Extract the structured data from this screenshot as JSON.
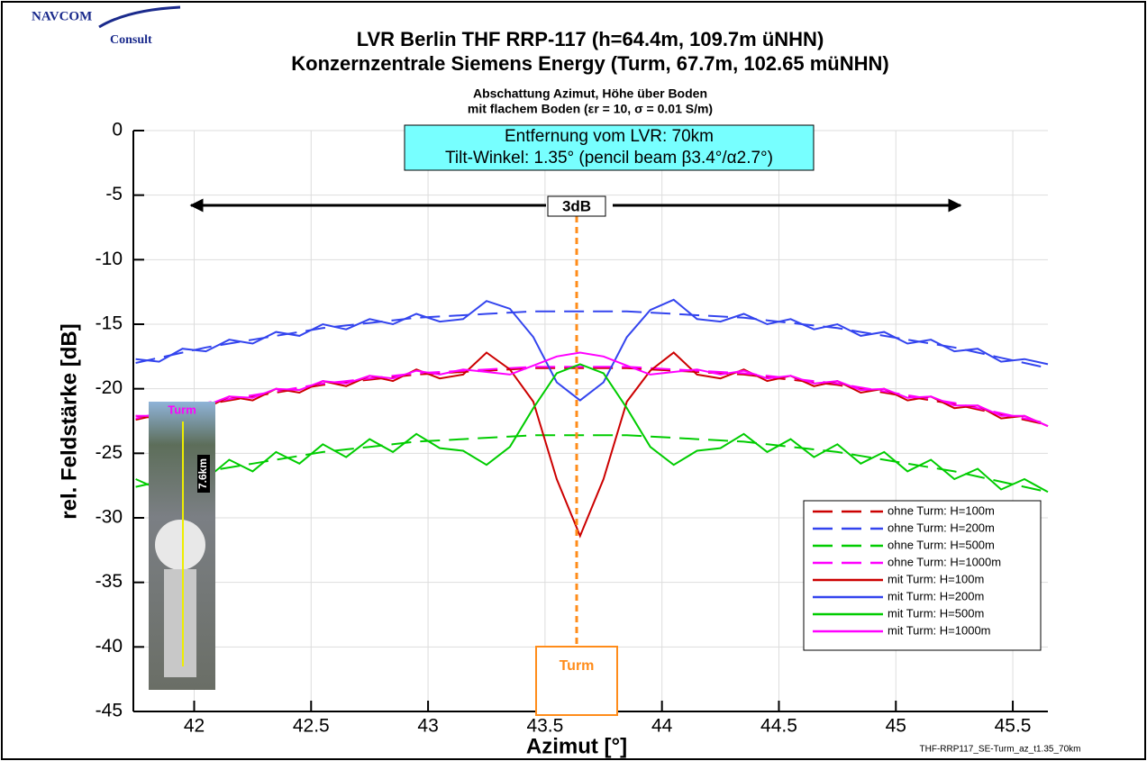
{
  "chart_data": {
    "type": "line",
    "title": [
      "LVR  Berlin THF RRP-117 (h=64.4m, 109.7m üNHN)",
      "Konzernzentrale Siemens Energy (Turm, 67.7m, 102.65 müNHN)"
    ],
    "subtitle": [
      "Abschattung Azimut, Höhe über Boden",
      "mit flachem Boden (εr = 10,  σ = 0.01 S/m)"
    ],
    "info_box": [
      "Entfernung vom LVR: 70km",
      "Tilt-Winkel: 1.35° (pencil beam β3.4°/α2.7°)"
    ],
    "annotations": {
      "beamwidth": "3dB",
      "tower": "Turm",
      "inset_tower": "Turm",
      "inset_distance": "7.6km"
    },
    "logo": [
      "NAVCOM",
      "Consult"
    ],
    "footer": "THF-RRP117_SE-Turm_az_t1.35_70km",
    "x_label": "Azimut [°]",
    "y_label": "rel. Feldstärke [dB]",
    "xlim": [
      41.74,
      45.65
    ],
    "ylim": [
      -45,
      0
    ],
    "xticks": [
      42,
      42.5,
      43,
      43.5,
      44,
      44.5,
      45,
      45.5
    ],
    "yticks": [
      0,
      -5,
      -10,
      -15,
      -20,
      -25,
      -30,
      -35,
      -40,
      -45
    ],
    "grid": true,
    "legend": "lower right",
    "x": [
      41.75,
      41.85,
      41.95,
      42.05,
      42.15,
      42.25,
      42.35,
      42.45,
      42.55,
      42.65,
      42.75,
      42.85,
      42.95,
      43.05,
      43.15,
      43.25,
      43.35,
      43.45,
      43.55,
      43.65,
      43.75,
      43.85,
      43.95,
      44.05,
      44.15,
      44.25,
      44.35,
      44.45,
      44.55,
      44.65,
      44.75,
      44.85,
      44.95,
      45.05,
      45.15,
      45.25,
      45.35,
      45.45,
      45.55,
      45.65
    ],
    "series": [
      {
        "name": "ohne Turm: H=100m",
        "color": "#cc0000",
        "dashed": true,
        "values": [
          -22.4,
          -22.0,
          -21.6,
          -21.2,
          -20.9,
          -20.6,
          -20.3,
          -20.0,
          -19.7,
          -19.5,
          -19.3,
          -19.1,
          -18.9,
          -18.8,
          -18.7,
          -18.6,
          -18.5,
          -18.4,
          -18.4,
          -18.4,
          -18.4,
          -18.4,
          -18.5,
          -18.6,
          -18.7,
          -18.8,
          -18.9,
          -19.1,
          -19.3,
          -19.5,
          -19.7,
          -20.0,
          -20.3,
          -20.6,
          -20.9,
          -21.2,
          -21.6,
          -22.0,
          -22.4,
          -22.8
        ]
      },
      {
        "name": "ohne Turm: H=200m",
        "color": "#3344ee",
        "dashed": true,
        "values": [
          -18.0,
          -17.6,
          -17.2,
          -16.8,
          -16.5,
          -16.2,
          -15.9,
          -15.6,
          -15.3,
          -15.1,
          -14.9,
          -14.7,
          -14.5,
          -14.4,
          -14.3,
          -14.2,
          -14.1,
          -14.0,
          -14.0,
          -14.0,
          -14.0,
          -14.0,
          -14.1,
          -14.2,
          -14.3,
          -14.4,
          -14.5,
          -14.7,
          -14.9,
          -15.1,
          -15.3,
          -15.6,
          -15.9,
          -16.2,
          -16.5,
          -16.8,
          -17.2,
          -17.6,
          -18.0,
          -18.4
        ]
      },
      {
        "name": "ohne Turm: H=500m",
        "color": "#00cc00",
        "dashed": true,
        "values": [
          -27.6,
          -27.2,
          -26.8,
          -26.4,
          -26.1,
          -25.8,
          -25.5,
          -25.2,
          -24.9,
          -24.7,
          -24.5,
          -24.3,
          -24.1,
          -24.0,
          -23.9,
          -23.8,
          -23.7,
          -23.6,
          -23.6,
          -23.6,
          -23.6,
          -23.6,
          -23.7,
          -23.8,
          -23.9,
          -24.0,
          -24.1,
          -24.3,
          -24.5,
          -24.7,
          -24.9,
          -25.2,
          -25.5,
          -25.8,
          -26.1,
          -26.4,
          -26.8,
          -27.2,
          -27.6,
          -28.0
        ]
      },
      {
        "name": "ohne Turm: H=1000m",
        "color": "#ff00ff",
        "dashed": true,
        "values": [
          -22.3,
          -21.9,
          -21.5,
          -21.1,
          -20.8,
          -20.5,
          -20.2,
          -19.9,
          -19.6,
          -19.4,
          -19.2,
          -19.0,
          -18.8,
          -18.7,
          -18.6,
          -18.5,
          -18.4,
          -18.3,
          -18.3,
          -18.3,
          -18.3,
          -18.3,
          -18.4,
          -18.5,
          -18.6,
          -18.7,
          -18.8,
          -19.0,
          -19.2,
          -19.4,
          -19.6,
          -19.9,
          -20.2,
          -20.5,
          -20.8,
          -21.1,
          -21.5,
          -21.9,
          -22.3,
          -22.7
        ]
      },
      {
        "name": "mit Turm: H=100m",
        "color": "#cc0000",
        "dashed": false,
        "values": [
          -22.1,
          -22.3,
          -21.3,
          -21.5,
          -20.6,
          -20.9,
          -20.0,
          -20.3,
          -19.4,
          -19.8,
          -19.0,
          -19.4,
          -18.5,
          -19.2,
          -18.9,
          -17.2,
          -18.5,
          -21.0,
          -27.0,
          -31.4,
          -27.0,
          -21.0,
          -18.6,
          -17.2,
          -18.9,
          -19.2,
          -18.5,
          -19.4,
          -19.0,
          -19.8,
          -19.4,
          -20.3,
          -20.0,
          -20.9,
          -20.6,
          -21.5,
          -21.3,
          -22.3,
          -22.1,
          -22.9
        ]
      },
      {
        "name": "mit Turm: H=200m",
        "color": "#3344ee",
        "dashed": false,
        "values": [
          -17.7,
          -17.9,
          -16.9,
          -17.1,
          -16.2,
          -16.5,
          -15.6,
          -15.9,
          -15.0,
          -15.4,
          -14.6,
          -15.0,
          -14.2,
          -14.8,
          -14.6,
          -13.2,
          -13.8,
          -16.0,
          -19.5,
          -20.9,
          -19.5,
          -16.0,
          -13.9,
          -13.1,
          -14.6,
          -14.8,
          -14.2,
          -15.0,
          -14.6,
          -15.4,
          -15.0,
          -15.9,
          -15.6,
          -16.5,
          -16.2,
          -17.1,
          -16.9,
          -17.9,
          -17.7,
          -18.1
        ]
      },
      {
        "name": "mit Turm: H=500m",
        "color": "#00cc00",
        "dashed": false,
        "values": [
          -27.0,
          -27.8,
          -26.2,
          -27.0,
          -25.5,
          -26.4,
          -24.9,
          -25.8,
          -24.3,
          -25.3,
          -23.9,
          -24.9,
          -23.5,
          -24.6,
          -24.8,
          -25.9,
          -24.5,
          -21.5,
          -18.8,
          -18.1,
          -18.8,
          -21.5,
          -24.5,
          -25.9,
          -24.8,
          -24.6,
          -23.5,
          -24.9,
          -23.9,
          -25.3,
          -24.3,
          -25.8,
          -24.9,
          -26.4,
          -25.5,
          -27.0,
          -26.2,
          -27.8,
          -27.0,
          -28.0
        ]
      },
      {
        "name": "mit Turm: H=1000m",
        "color": "#ff00ff",
        "dashed": false,
        "values": [
          -22.1,
          -22.1,
          -21.3,
          -21.3,
          -20.6,
          -20.7,
          -20.0,
          -20.1,
          -19.4,
          -19.6,
          -19.0,
          -19.2,
          -18.6,
          -18.9,
          -18.5,
          -18.7,
          -18.9,
          -18.2,
          -17.5,
          -17.2,
          -17.5,
          -18.2,
          -18.9,
          -18.7,
          -18.5,
          -18.9,
          -18.6,
          -19.2,
          -19.0,
          -19.6,
          -19.4,
          -20.1,
          -20.0,
          -20.7,
          -20.6,
          -21.3,
          -21.3,
          -22.1,
          -22.1,
          -22.9
        ]
      }
    ]
  }
}
